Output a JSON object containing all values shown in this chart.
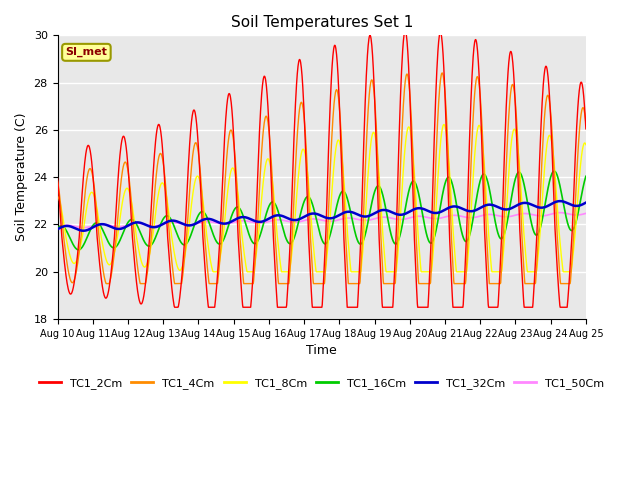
{
  "title": "Soil Temperatures Set 1",
  "xlabel": "Time",
  "ylabel": "Soil Temperature (C)",
  "ylim": [
    18,
    30
  ],
  "yticks": [
    18,
    20,
    22,
    24,
    26,
    28,
    30
  ],
  "xlim": [
    0,
    15
  ],
  "xtick_labels": [
    "Aug 10",
    "Aug 11",
    "Aug 12",
    "Aug 13",
    "Aug 14",
    "Aug 15",
    "Aug 16",
    "Aug 17",
    "Aug 18",
    "Aug 19",
    "Aug 20",
    "Aug 21",
    "Aug 22",
    "Aug 23",
    "Aug 24",
    "Aug 25"
  ],
  "annotation_text": "SI_met",
  "annotation_color": "#8B0000",
  "annotation_bg": "#FFFF99",
  "annotation_border": "#999900",
  "background_color": "#E8E8E8",
  "figsize": [
    6.4,
    4.8
  ],
  "dpi": 100,
  "series": {
    "TC1_2Cm": {
      "color": "#FF0000",
      "linewidth": 1.0
    },
    "TC1_4Cm": {
      "color": "#FF8C00",
      "linewidth": 1.0
    },
    "TC1_8Cm": {
      "color": "#FFFF00",
      "linewidth": 1.0
    },
    "TC1_16Cm": {
      "color": "#00CC00",
      "linewidth": 1.2
    },
    "TC1_32Cm": {
      "color": "#0000CC",
      "linewidth": 1.8
    },
    "TC1_50Cm": {
      "color": "#FF88FF",
      "linewidth": 1.2
    }
  }
}
